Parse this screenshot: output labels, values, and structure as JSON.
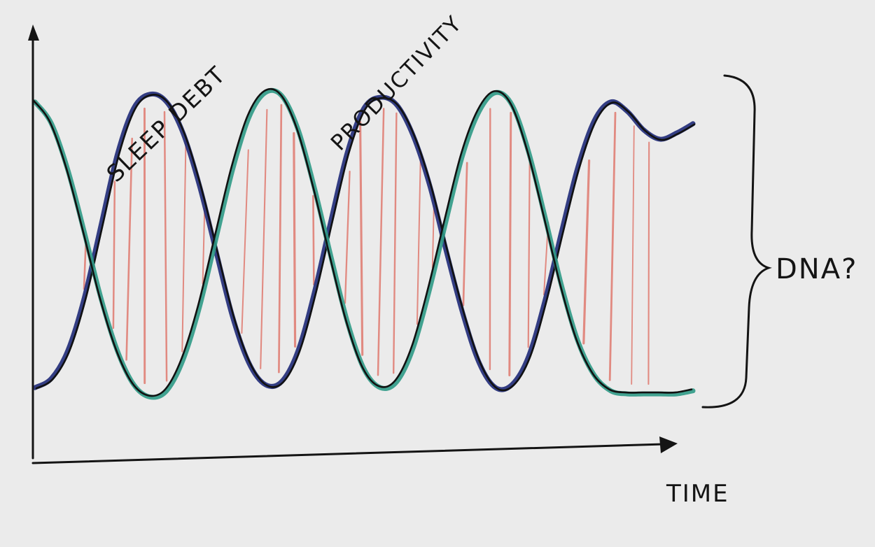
{
  "chart_data": {
    "type": "line",
    "style": "hand-drawn sketch on paper",
    "xlabel": "TIME",
    "ylabel": "",
    "grid": false,
    "x": [
      0,
      0.25,
      0.5,
      0.75,
      1,
      1.25,
      1.5,
      1.75,
      2,
      2.25,
      2.5,
      2.75,
      3,
      3.25,
      3.5,
      3.75,
      4,
      4.25,
      4.5,
      4.75,
      5,
      5.25,
      5.5,
      5.75,
      6,
      6.25,
      6.5,
      6.75,
      7,
      7.25,
      7.5,
      7.75,
      8,
      8.25,
      8.5,
      8.75,
      9,
      9.25,
      9.5,
      9.75,
      10
    ],
    "series": [
      {
        "name": "SLEEP DEBT",
        "color": "#1f2a78",
        "values": [
          0.04,
          0.07,
          0.16,
          0.33,
          0.56,
          0.79,
          0.94,
          0.985,
          0.96,
          0.86,
          0.69,
          0.48,
          0.27,
          0.12,
          0.05,
          0.06,
          0.16,
          0.35,
          0.58,
          0.8,
          0.94,
          0.975,
          0.95,
          0.85,
          0.69,
          0.48,
          0.28,
          0.12,
          0.04,
          0.05,
          0.14,
          0.32,
          0.54,
          0.75,
          0.9,
          0.96,
          0.93,
          0.87,
          0.84,
          0.86,
          0.89
        ]
      },
      {
        "name": "PRODUCTIVITY",
        "color": "#2f9a86",
        "values": [
          0.96,
          0.89,
          0.74,
          0.54,
          0.33,
          0.16,
          0.05,
          0.01,
          0.03,
          0.13,
          0.3,
          0.52,
          0.74,
          0.91,
          0.99,
          0.98,
          0.87,
          0.68,
          0.46,
          0.25,
          0.1,
          0.04,
          0.06,
          0.17,
          0.36,
          0.58,
          0.79,
          0.93,
          0.99,
          0.95,
          0.8,
          0.59,
          0.37,
          0.19,
          0.08,
          0.03,
          0.02,
          0.02,
          0.02,
          0.02,
          0.03
        ]
      }
    ],
    "annotations": [
      {
        "text": "SLEEP DEBT"
      },
      {
        "text": "PRODUCTIVITY"
      },
      {
        "text": "DNA?"
      }
    ]
  }
}
